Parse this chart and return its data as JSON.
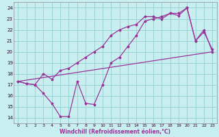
{
  "xlabel": "Windchill (Refroidissement éolien,°C)",
  "background_color": "#c8eef0",
  "grid_color": "#9ad4d6",
  "line_color": "#993399",
  "xlim": [
    -0.5,
    23.5
  ],
  "ylim": [
    13.5,
    24.5
  ],
  "xticks": [
    0,
    1,
    2,
    3,
    4,
    5,
    6,
    7,
    8,
    9,
    10,
    11,
    12,
    13,
    14,
    15,
    16,
    17,
    18,
    19,
    20,
    21,
    22,
    23
  ],
  "yticks": [
    14,
    15,
    16,
    17,
    18,
    19,
    20,
    21,
    22,
    23,
    24
  ],
  "line1_x": [
    0,
    1,
    2,
    3,
    4,
    5,
    6,
    7,
    8,
    9,
    10,
    11,
    12,
    13,
    14,
    15,
    16,
    17,
    18,
    19,
    20,
    21,
    22,
    23
  ],
  "line1_y": [
    17.3,
    17.1,
    17.0,
    16.2,
    15.3,
    14.1,
    14.1,
    17.3,
    15.3,
    15.2,
    17.0,
    19.0,
    19.5,
    20.5,
    21.5,
    22.8,
    23.0,
    23.2,
    23.5,
    23.5,
    24.0,
    21.0,
    21.8,
    20.2
  ],
  "line2_x": [
    0,
    1,
    2,
    3,
    4,
    5,
    6,
    7,
    8,
    9,
    10,
    11,
    12,
    13,
    14,
    15,
    16,
    17,
    18,
    19,
    20,
    21,
    22,
    23
  ],
  "line2_y": [
    17.3,
    17.1,
    17.0,
    18.0,
    17.5,
    18.3,
    18.5,
    19.0,
    19.5,
    20.0,
    20.5,
    21.5,
    22.0,
    22.3,
    22.5,
    23.2,
    23.2,
    23.0,
    23.5,
    23.3,
    24.0,
    21.0,
    22.0,
    20.0
  ],
  "line3_x": [
    0,
    23
  ],
  "line3_y": [
    17.3,
    20.0
  ]
}
